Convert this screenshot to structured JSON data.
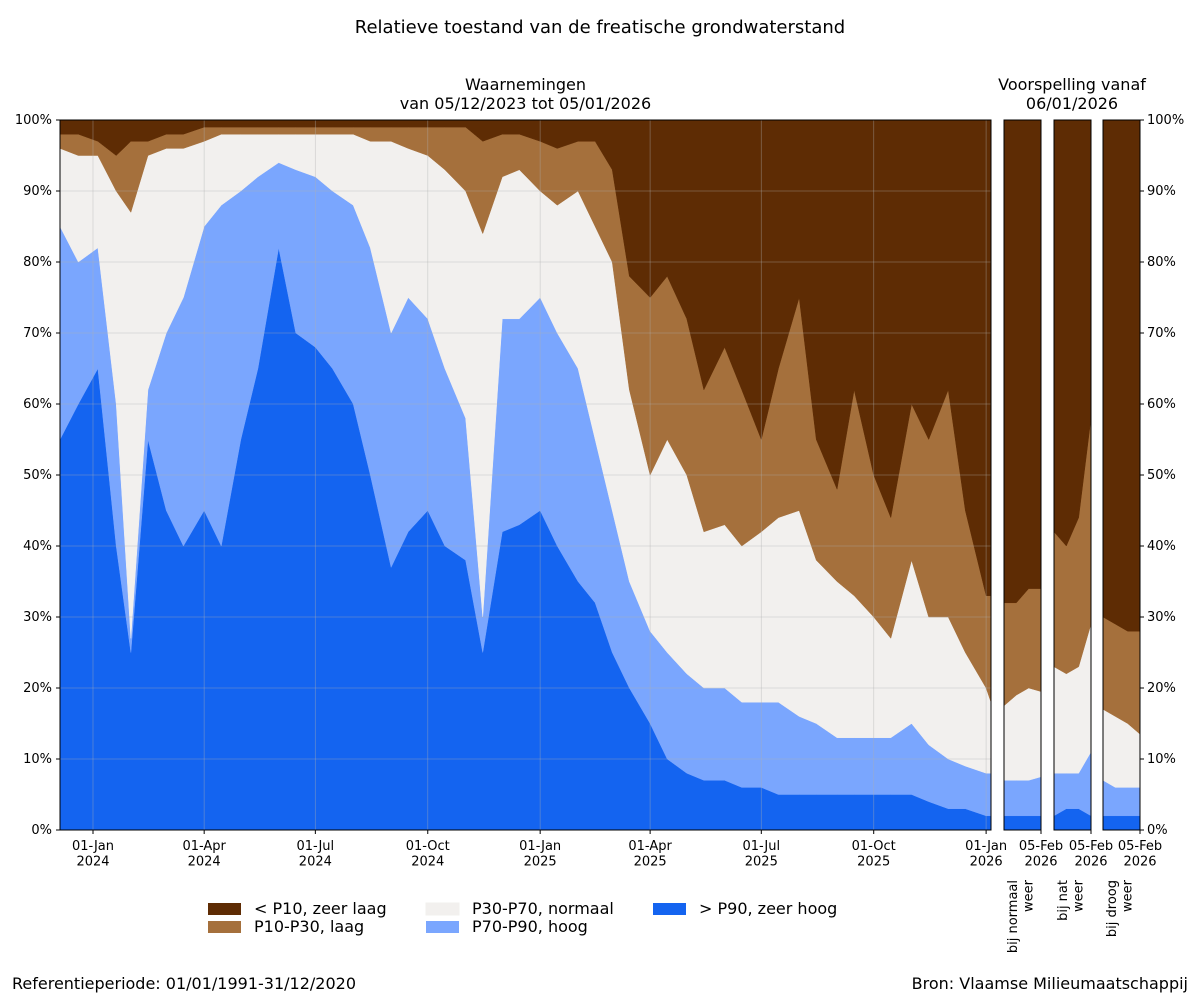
{
  "title": "Relatieve toestand van de freatische grondwaterstand",
  "forecast_title": "Voorspelling vanaf\n06/01/2026",
  "footer_left": "Referentieperiode: 01/01/1991-31/12/2020",
  "footer_right": "Bron: Vlaamse Milieumaatschappij",
  "chart_data": [
    {
      "type": "stacked-area",
      "title": "Waarnemingen\nvan 05/12/2023 tot 05/01/2026",
      "grid": true,
      "x": [
        "2023-12-05",
        "2023-12-20",
        "2024-01-05",
        "2024-01-20",
        "2024-02-01",
        "2024-02-15",
        "2024-03-01",
        "2024-03-15",
        "2024-04-01",
        "2024-04-15",
        "2024-05-01",
        "2024-05-15",
        "2024-06-01",
        "2024-06-15",
        "2024-07-01",
        "2024-07-15",
        "2024-08-01",
        "2024-08-15",
        "2024-09-01",
        "2024-09-15",
        "2024-10-01",
        "2024-10-15",
        "2024-11-01",
        "2024-11-15",
        "2024-12-01",
        "2024-12-15",
        "2025-01-01",
        "2025-01-15",
        "2025-02-01",
        "2025-02-15",
        "2025-03-01",
        "2025-03-15",
        "2025-04-01",
        "2025-04-15",
        "2025-05-01",
        "2025-05-15",
        "2025-06-01",
        "2025-06-15",
        "2025-07-01",
        "2025-07-15",
        "2025-08-01",
        "2025-08-15",
        "2025-09-01",
        "2025-09-15",
        "2025-10-01",
        "2025-10-15",
        "2025-11-01",
        "2025-11-15",
        "2025-12-01",
        "2025-12-15",
        "2026-01-01",
        "2026-01-05"
      ],
      "xlim": [
        "2023-12-05",
        "2026-01-05"
      ],
      "xticks": [
        {
          "value": "2024-01-01",
          "label": "01-Jan\n2024"
        },
        {
          "value": "2024-04-01",
          "label": "01-Apr\n2024"
        },
        {
          "value": "2024-07-01",
          "label": "01-Jul\n2024"
        },
        {
          "value": "2024-10-01",
          "label": "01-Oct\n2024"
        },
        {
          "value": "2025-01-01",
          "label": "01-Jan\n2025"
        },
        {
          "value": "2025-04-01",
          "label": "01-Apr\n2025"
        },
        {
          "value": "2025-07-01",
          "label": "01-Jul\n2025"
        },
        {
          "value": "2025-10-01",
          "label": "01-Oct\n2025"
        },
        {
          "value": "2026-01-01",
          "label": "01-Jan\n2026"
        }
      ],
      "ylim": [
        0,
        100
      ],
      "yticks": [
        {
          "value": 0,
          "label": "0%"
        },
        {
          "value": 10,
          "label": "10%"
        },
        {
          "value": 20,
          "label": "20%"
        },
        {
          "value": 30,
          "label": "30%"
        },
        {
          "value": 40,
          "label": "40%"
        },
        {
          "value": 50,
          "label": "50%"
        },
        {
          "value": 60,
          "label": "60%"
        },
        {
          "value": 70,
          "label": "70%"
        },
        {
          "value": 80,
          "label": "80%"
        },
        {
          "value": 90,
          "label": "90%"
        },
        {
          "value": 100,
          "label": "100%"
        }
      ],
      "series": [
        {
          "name": "> P90, zeer hoog",
          "color": "#1464f0",
          "values": [
            55,
            60,
            65,
            40,
            25,
            55,
            45,
            40,
            45,
            40,
            55,
            65,
            82,
            70,
            68,
            65,
            60,
            50,
            37,
            42,
            45,
            40,
            38,
            25,
            42,
            43,
            45,
            40,
            35,
            32,
            25,
            20,
            15,
            10,
            8,
            7,
            7,
            6,
            6,
            5,
            5,
            5,
            5,
            5,
            5,
            5,
            5,
            4,
            3,
            3,
            2,
            2
          ]
        },
        {
          "name": "P70-P90, hoog",
          "color": "#7aa6fe",
          "values": [
            30,
            20,
            17,
            20,
            2,
            7,
            25,
            35,
            40,
            48,
            35,
            27,
            12,
            23,
            24,
            25,
            28,
            32,
            33,
            33,
            27,
            25,
            20,
            5,
            30,
            29,
            30,
            30,
            30,
            23,
            20,
            15,
            13,
            15,
            14,
            13,
            13,
            12,
            12,
            13,
            11,
            10,
            8,
            8,
            8,
            8,
            10,
            8,
            7,
            6,
            6,
            6
          ]
        },
        {
          "name": "P30-P70, normaal",
          "color": "#f2f0ee",
          "values": [
            11,
            15,
            13,
            30,
            60,
            33,
            26,
            21,
            12,
            10,
            8,
            6,
            4,
            5,
            6,
            8,
            10,
            15,
            27,
            21,
            23,
            28,
            32,
            54,
            20,
            21,
            15,
            18,
            25,
            30,
            35,
            27,
            22,
            30,
            28,
            22,
            23,
            22,
            24,
            26,
            29,
            23,
            22,
            20,
            17,
            14,
            23,
            18,
            20,
            16,
            12,
            10
          ]
        },
        {
          "name": "P10-P30, laag",
          "color": "#a5703c",
          "values": [
            2,
            3,
            2,
            5,
            10,
            2,
            2,
            2,
            2,
            1,
            1,
            1,
            1,
            1,
            1,
            1,
            1,
            2,
            2,
            3,
            4,
            6,
            9,
            13,
            6,
            5,
            7,
            8,
            7,
            12,
            13,
            16,
            25,
            23,
            22,
            20,
            25,
            22,
            13,
            21,
            30,
            17,
            13,
            29,
            20,
            17,
            22,
            25,
            32,
            20,
            13,
            15
          ]
        },
        {
          "name": "< P10, zeer laag",
          "color": "#5e2c04",
          "values": [
            2,
            2,
            3,
            5,
            3,
            3,
            2,
            2,
            1,
            1,
            1,
            1,
            1,
            1,
            1,
            1,
            1,
            1,
            1,
            1,
            1,
            1,
            1,
            3,
            2,
            2,
            3,
            4,
            3,
            3,
            7,
            22,
            25,
            22,
            28,
            38,
            32,
            38,
            45,
            35,
            25,
            45,
            52,
            38,
            50,
            56,
            40,
            45,
            38,
            55,
            67,
            67
          ]
        }
      ]
    },
    {
      "type": "stacked-area",
      "xlabel": "bij normaal\nweer",
      "x": [
        "2026-01-06",
        "2026-01-16",
        "2026-01-26",
        "2026-02-05"
      ],
      "xlim": [
        "2026-01-06",
        "2026-02-05"
      ],
      "xticks": [
        {
          "value": "2026-02-05",
          "label": "05-Feb\n2026"
        }
      ],
      "ylim": [
        0,
        100
      ],
      "series": [
        {
          "color": "#1464f0",
          "values": [
            2,
            2,
            2,
            2
          ]
        },
        {
          "color": "#7aa6fe",
          "values": [
            5,
            5,
            5,
            5.5
          ]
        },
        {
          "color": "#f2f0ee",
          "values": [
            10.5,
            12,
            13,
            12
          ]
        },
        {
          "color": "#a5703c",
          "values": [
            14.5,
            13,
            14,
            14.5
          ]
        },
        {
          "color": "#5e2c04",
          "values": [
            68,
            68,
            66,
            66
          ]
        }
      ]
    },
    {
      "type": "stacked-area",
      "xlabel": "bij nat\nweer",
      "x": [
        "2026-01-06",
        "2026-01-16",
        "2026-01-26",
        "2026-02-05"
      ],
      "xlim": [
        "2026-01-06",
        "2026-02-05"
      ],
      "xticks": [
        {
          "value": "2026-02-05",
          "label": "05-Feb\n2026"
        }
      ],
      "ylim": [
        0,
        100
      ],
      "series": [
        {
          "color": "#1464f0",
          "values": [
            2,
            3,
            3,
            2
          ]
        },
        {
          "color": "#7aa6fe",
          "values": [
            6,
            5,
            5,
            9
          ]
        },
        {
          "color": "#f2f0ee",
          "values": [
            15,
            14,
            15,
            18
          ]
        },
        {
          "color": "#a5703c",
          "values": [
            19,
            18,
            21,
            29
          ]
        },
        {
          "color": "#5e2c04",
          "values": [
            58,
            60,
            56,
            42
          ]
        }
      ]
    },
    {
      "type": "stacked-area",
      "xlabel": "bij droog\nweer",
      "x": [
        "2026-01-06",
        "2026-01-16",
        "2026-01-26",
        "2026-02-05"
      ],
      "xlim": [
        "2026-01-06",
        "2026-02-05"
      ],
      "xticks": [
        {
          "value": "2026-02-05",
          "label": "05-Feb\n2026"
        }
      ],
      "ylim": [
        0,
        100
      ],
      "yticks": [
        {
          "value": 0,
          "label": "0%"
        },
        {
          "value": 10,
          "label": "10%"
        },
        {
          "value": 20,
          "label": "20%"
        },
        {
          "value": 30,
          "label": "30%"
        },
        {
          "value": 40,
          "label": "40%"
        },
        {
          "value": 50,
          "label": "50%"
        },
        {
          "value": 60,
          "label": "60%"
        },
        {
          "value": 70,
          "label": "70%"
        },
        {
          "value": 80,
          "label": "80%"
        },
        {
          "value": 90,
          "label": "90%"
        },
        {
          "value": 100,
          "label": "100%"
        }
      ],
      "series": [
        {
          "color": "#1464f0",
          "values": [
            2,
            2,
            2,
            2
          ]
        },
        {
          "color": "#7aa6fe",
          "values": [
            5,
            4,
            4,
            4
          ]
        },
        {
          "color": "#f2f0ee",
          "values": [
            10,
            10,
            9,
            7.5
          ]
        },
        {
          "color": "#a5703c",
          "values": [
            13,
            13,
            13,
            14.5
          ]
        },
        {
          "color": "#5e2c04",
          "values": [
            70,
            71,
            72,
            72
          ]
        }
      ]
    }
  ]
}
